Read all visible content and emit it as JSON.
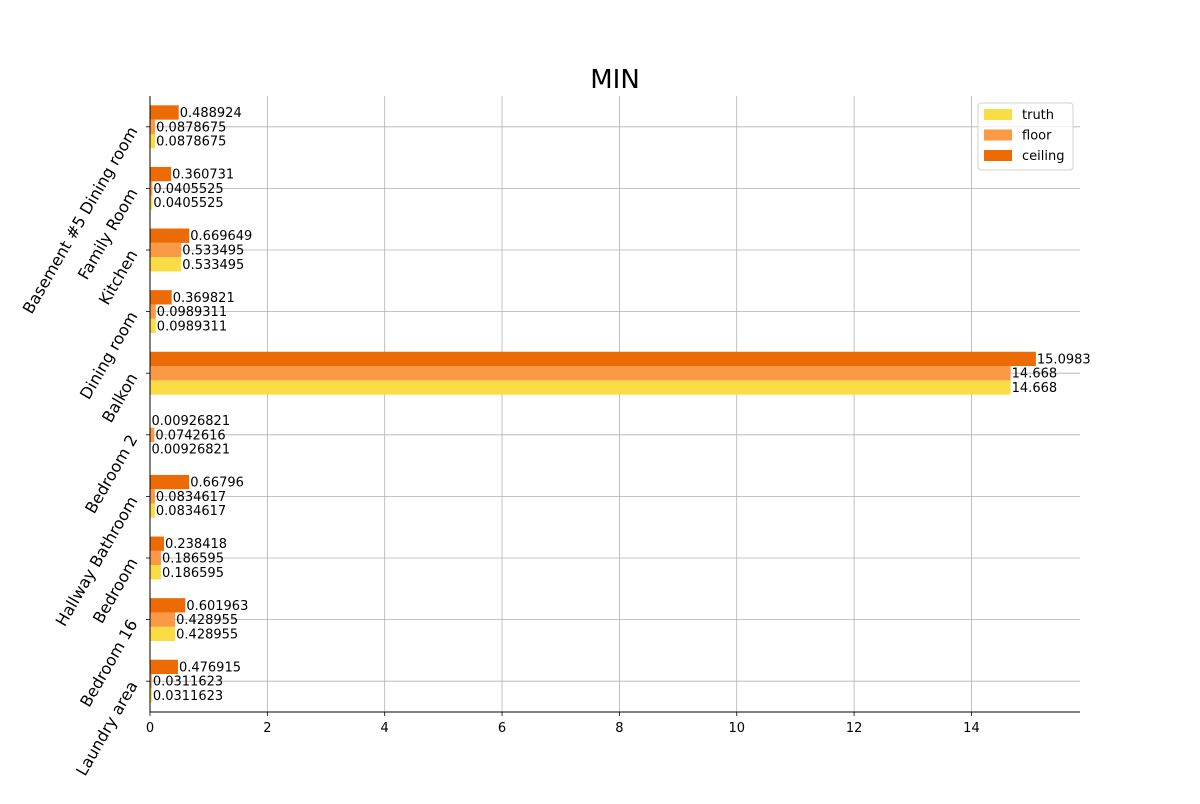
{
  "chart_data": {
    "type": "bar",
    "orientation": "horizontal",
    "title": "MIN",
    "xlabel": "",
    "ylabel": "",
    "xlim": [
      0,
      15.85
    ],
    "x_ticks": [
      0,
      2,
      4,
      6,
      8,
      10,
      12,
      14
    ],
    "grid": true,
    "legend_position": "top-right",
    "categories": [
      "Basement #5 Dining room",
      "Family Room",
      "Kitchen",
      "Dining room",
      "Balkon",
      "Bedroom 2",
      "Hallway Bathroom",
      "Bedroom",
      "Bedroom 16",
      "Laundry area"
    ],
    "series": [
      {
        "name": "truth",
        "color": "#fadc45",
        "values": [
          0.0878675,
          0.0405525,
          0.533495,
          0.0989311,
          14.668,
          0.00926821,
          0.0834617,
          0.186595,
          0.428955,
          0.0311623
        ],
        "labels": [
          "0.0878675",
          "0.0405525",
          "0.533495",
          "0.0989311",
          "14.668",
          "0.00926821",
          "0.0834617",
          "0.186595",
          "0.428955",
          "0.0311623"
        ]
      },
      {
        "name": "floor",
        "color": "#fa9a46",
        "values": [
          0.0878675,
          0.0405525,
          0.533495,
          0.0989311,
          14.668,
          0.0742616,
          0.0834617,
          0.186595,
          0.428955,
          0.0311623
        ],
        "labels": [
          "0.0878675",
          "0.0405525",
          "0.533495",
          "0.0989311",
          "14.668",
          "0.0742616",
          "0.0834617",
          "0.186595",
          "0.428955",
          "0.0311623"
        ]
      },
      {
        "name": "ceiling",
        "color": "#ed6b04",
        "values": [
          0.488924,
          0.360731,
          0.669649,
          0.369821,
          15.0983,
          0.00926821,
          0.66796,
          0.238418,
          0.601963,
          0.476915
        ],
        "labels": [
          "0.488924",
          "0.360731",
          "0.669649",
          "0.369821",
          "15.0983",
          "0.00926821",
          "0.66796",
          "0.238418",
          "0.601963",
          "0.476915"
        ]
      }
    ]
  }
}
